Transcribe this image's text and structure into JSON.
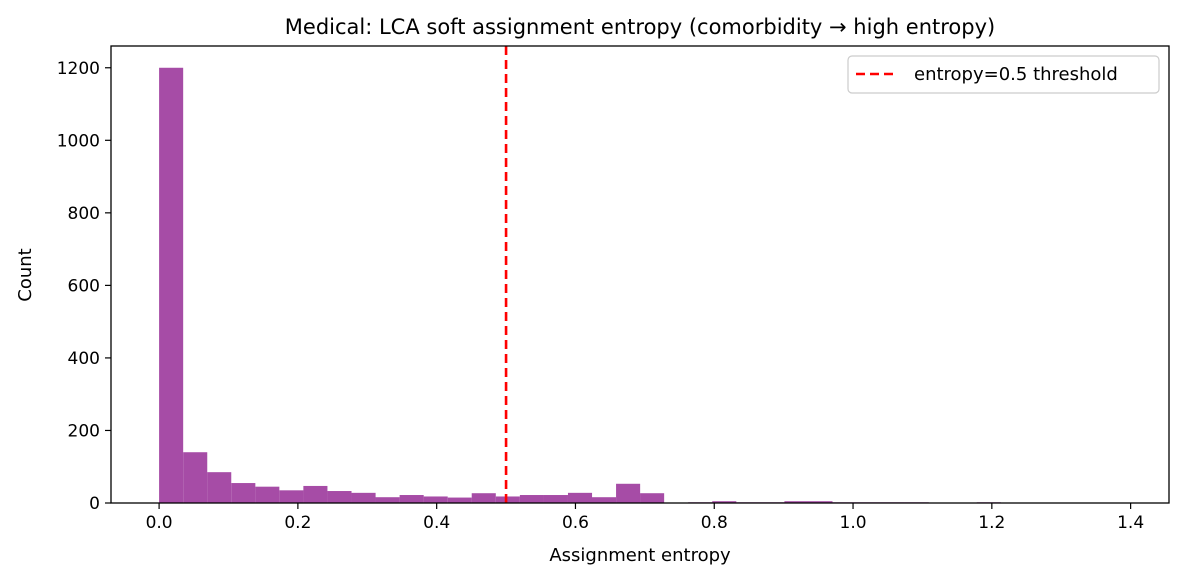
{
  "chart_data": {
    "type": "bar",
    "title": "Medical: LCA soft assignment entropy (comorbidity → high entropy)",
    "xlabel": "Assignment entropy",
    "ylabel": "Count",
    "xlim": [
      -0.0693,
      1.4553
    ],
    "ylim": [
      0,
      1260
    ],
    "bar_color": "#a64ca6",
    "bin_width": 0.0347,
    "bin_starts": [
      0.0,
      0.0347,
      0.0693,
      0.104,
      0.1386,
      0.1733,
      0.2079,
      0.2426,
      0.2773,
      0.3119,
      0.3466,
      0.3812,
      0.4159,
      0.4505,
      0.4852,
      0.5199,
      0.5545,
      0.5892,
      0.6238,
      0.6585,
      0.6931,
      0.7278,
      0.7624,
      0.7971,
      0.8318,
      0.8664,
      0.9011,
      0.9357,
      0.9704,
      1.005,
      1.0397,
      1.0744,
      1.109,
      1.1437,
      1.1783,
      1.213,
      1.2476,
      1.2823,
      1.317,
      1.3516
    ],
    "values": [
      1200,
      140,
      85,
      55,
      45,
      35,
      47,
      33,
      28,
      16,
      22,
      18,
      15,
      27,
      18,
      22,
      22,
      28,
      16,
      53,
      27,
      0,
      2,
      5,
      2,
      2,
      5,
      5,
      2,
      2,
      2,
      2,
      0,
      0,
      2,
      0,
      0,
      0,
      0,
      0
    ],
    "x_ticks": [
      "0.0",
      "0.2",
      "0.4",
      "0.6",
      "0.8",
      "1.0",
      "1.2",
      "1.4"
    ],
    "x_tick_values": [
      0.0,
      0.2,
      0.4,
      0.6,
      0.8,
      1.0,
      1.2,
      1.4
    ],
    "y_ticks": [
      "0",
      "200",
      "400",
      "600",
      "800",
      "1000",
      "1200"
    ],
    "y_tick_values": [
      0,
      200,
      400,
      600,
      800,
      1000,
      1200
    ],
    "reference_line": {
      "x": 0.5,
      "color": "#ff0000",
      "style": "dashed",
      "label": "entropy=0.5 threshold"
    },
    "legend": {
      "position": "top-right",
      "entries": [
        "entropy=0.5 threshold"
      ]
    },
    "grid": false
  }
}
